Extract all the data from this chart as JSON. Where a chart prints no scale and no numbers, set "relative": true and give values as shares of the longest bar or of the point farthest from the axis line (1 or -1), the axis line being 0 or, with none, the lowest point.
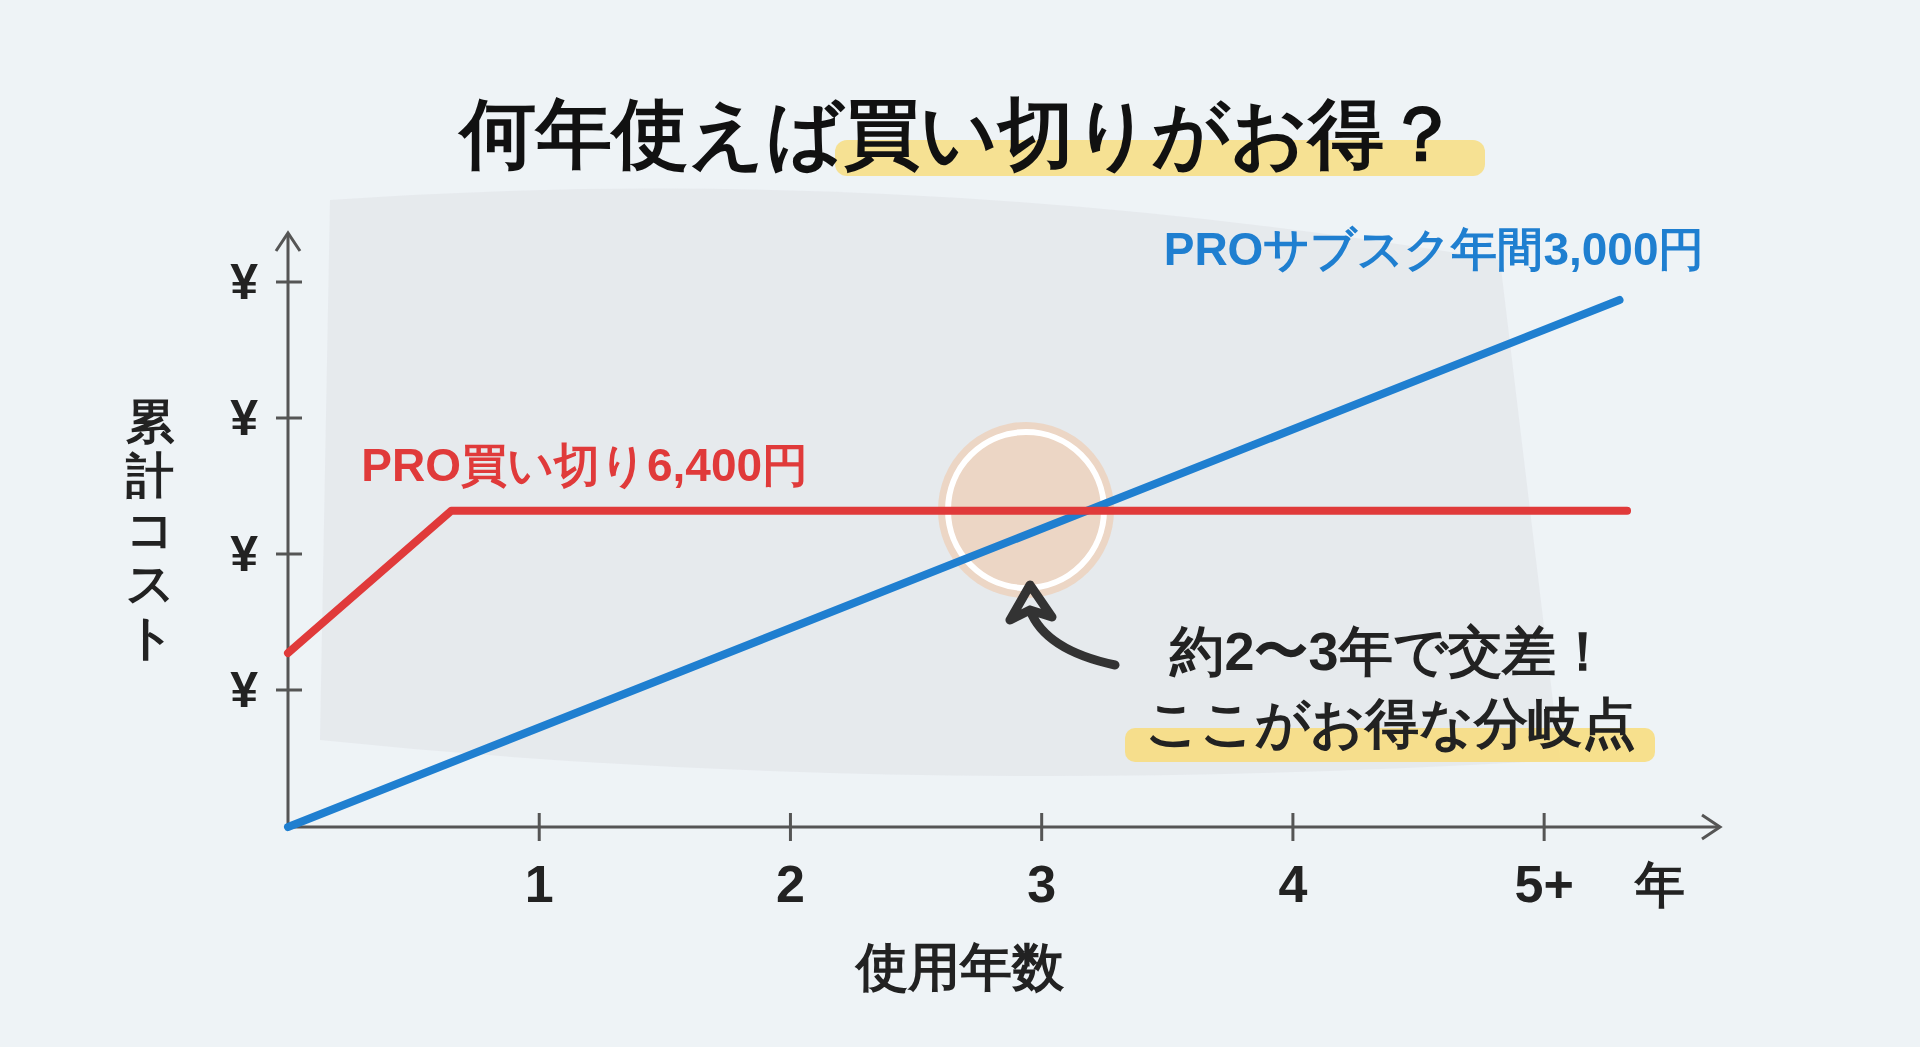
{
  "chart_data": {
    "type": "line",
    "title": "何年使えば買い切りがお得？",
    "xlabel": "使用年数",
    "ylabel": "累計コスト",
    "relative": true,
    "xlim": [
      0,
      5.7
    ],
    "xticks": [
      1,
      2,
      3,
      4,
      {
        "value": 5,
        "label": "5+"
      }
    ],
    "series": [
      {
        "name": "PROサブスク年間3,000円",
        "color": "#1f7fd0",
        "x": [
          0,
          5.3
        ],
        "values": [
          0,
          1
        ]
      },
      {
        "name": "PRO買い切り6,400円",
        "color": "#e03a3a",
        "x": [
          0,
          0.65,
          5.33
        ],
        "values": [
          0.33,
          0.6,
          0.6
        ]
      }
    ],
    "annotations": [
      "年",
      "¥",
      "¥",
      "¥",
      "¥",
      "約2〜3年で交差！",
      "ここがお得な分岐点"
    ],
    "legend": false,
    "grid": false,
    "marker": "none",
    "line_style": "solid"
  }
}
